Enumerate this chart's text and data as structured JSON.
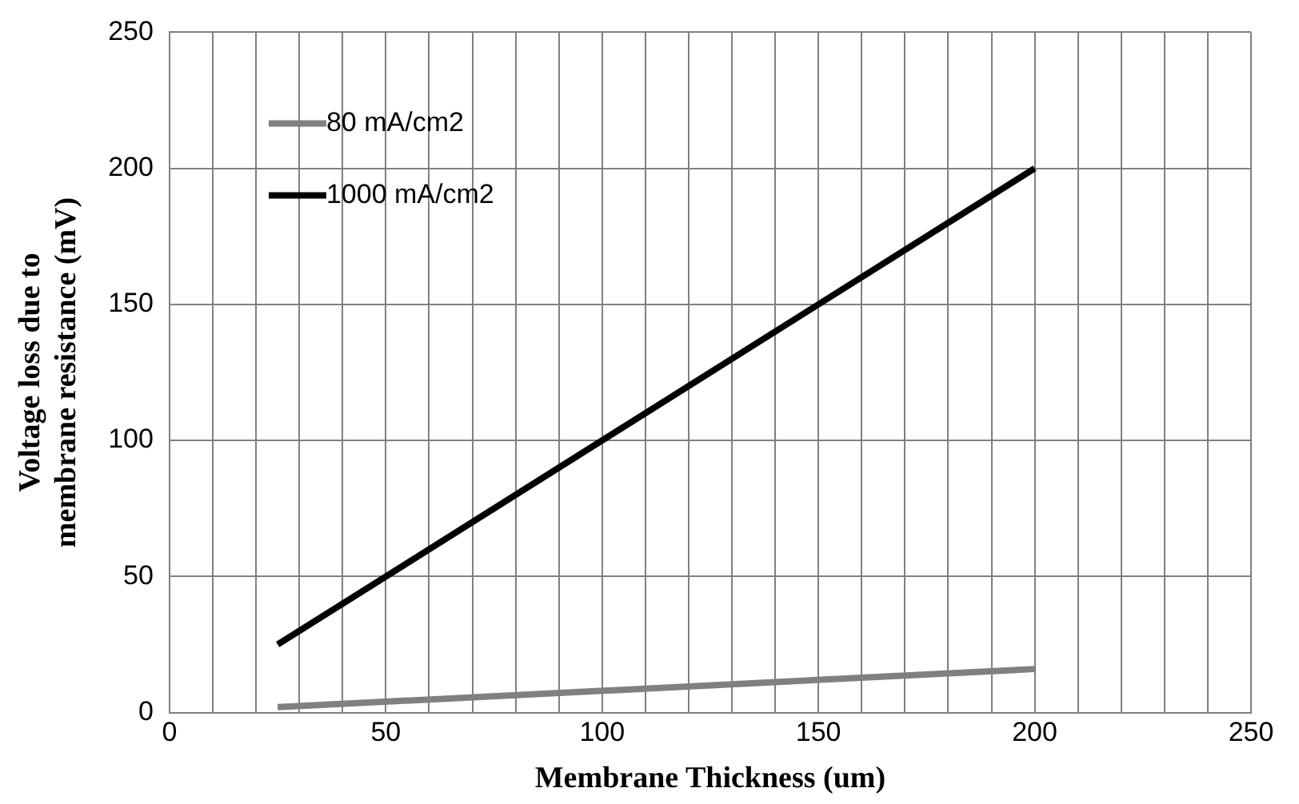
{
  "chart_data": {
    "type": "line",
    "xlabel": "Membrane Thickness (um)",
    "ylabel": "Voltage loss due to membrane resistance (mV)",
    "x": [
      25,
      200
    ],
    "series": [
      {
        "name": "80 mA/cm2",
        "color": "#808080",
        "values": [
          2,
          16
        ]
      },
      {
        "name": "1000 mA/cm2",
        "color": "#000000",
        "values": [
          25,
          200
        ]
      }
    ],
    "xlim": [
      0,
      250
    ],
    "xticks": [
      0,
      {
        "value": 10,
        "label": null
      },
      {
        "value": 20,
        "label": null
      },
      {
        "value": 30,
        "label": null
      },
      {
        "value": 40,
        "label": null
      },
      50,
      {
        "value": 60,
        "label": null
      },
      {
        "value": 70,
        "label": null
      },
      {
        "value": 80,
        "label": null
      },
      {
        "value": 90,
        "label": null
      },
      100,
      {
        "value": 110,
        "label": null
      },
      {
        "value": 120,
        "label": null
      },
      {
        "value": 130,
        "label": null
      },
      {
        "value": 140,
        "label": null
      },
      150,
      {
        "value": 160,
        "label": null
      },
      {
        "value": 170,
        "label": null
      },
      {
        "value": 180,
        "label": null
      },
      {
        "value": 190,
        "label": null
      },
      200,
      {
        "value": 210,
        "label": null
      },
      {
        "value": 220,
        "label": null
      },
      {
        "value": 230,
        "label": null
      },
      {
        "value": 240,
        "label": null
      },
      250
    ],
    "ylim": [
      0,
      250
    ],
    "yticks": [
      0,
      50,
      100,
      150,
      200,
      250
    ],
    "grid": true,
    "legend": "top left",
    "marker": "none",
    "line_style": "solid"
  }
}
